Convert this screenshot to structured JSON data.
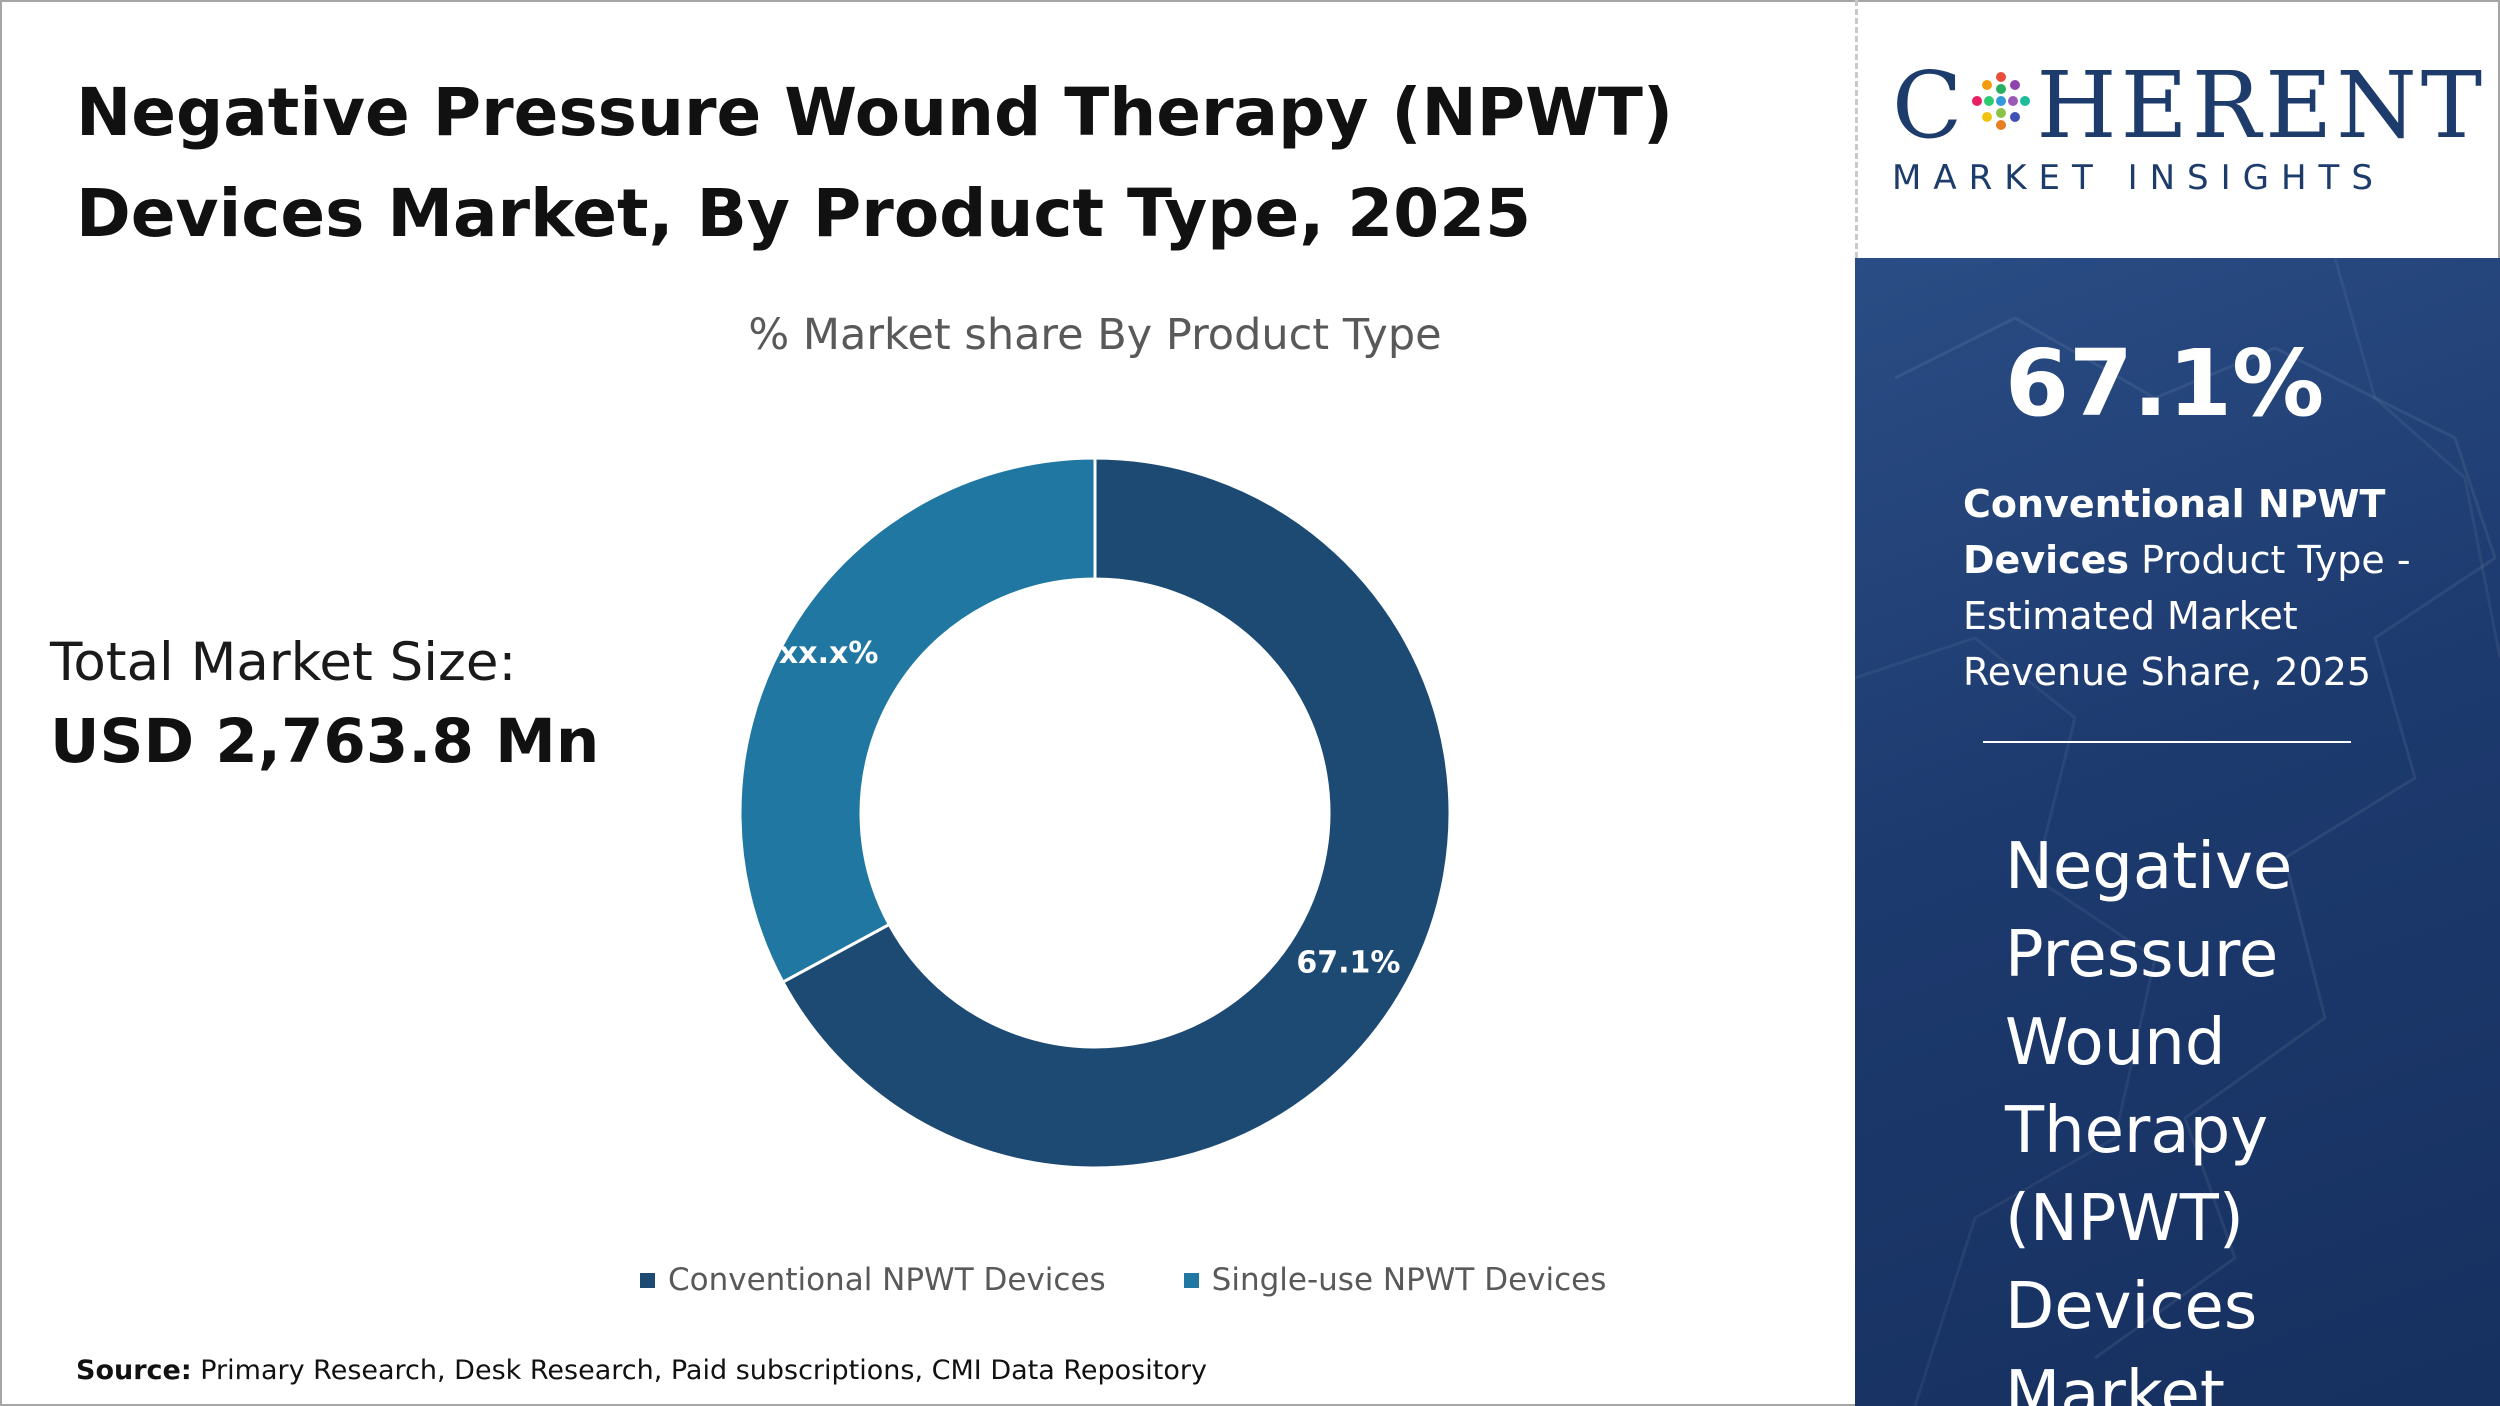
{
  "title_line1": "Negative Pressure Wound Therapy (NPWT)",
  "title_line2": "Devices Market, By Product Type, 2025",
  "total_market_size_label": "Total Market Size:",
  "total_market_size_value": "USD 2,763.8 Mn",
  "source_label": "Source:",
  "source_text": " Primary Research, Desk Research, Paid subscriptions, CMI Data Repository",
  "logo": {
    "word_start": "C",
    "word_end": "HERENT",
    "subtitle": "MARKET INSIGHTS",
    "dots_icon": "colored-dot-grid-o"
  },
  "side_panel": {
    "headline_percent": "67.1%",
    "desc_bold": "Conventional NPWT Devices",
    "desc_rest": " Product Type - Estimated Market Revenue Share, 2025",
    "market_title": "Negative Pressure Wound Therapy (NPWT) Devices Market"
  },
  "colors": {
    "navy": "#1d3c6b",
    "conventional": "#1c4a73",
    "single_use": "#1f77a2",
    "panel_bg": "#1d3a6e"
  },
  "chart_data": {
    "type": "pie",
    "subtitle": "% Market share By Product Type",
    "donut": true,
    "legend_position": "bottom",
    "slices": [
      {
        "label": "Conventional NPWT Devices",
        "value": 67.1,
        "display": "67.1%",
        "color": "#1c4a73"
      },
      {
        "label": "Single-use NPWT Devices",
        "value": 32.9,
        "display": "xx.x%",
        "color": "#1f77a2"
      }
    ]
  }
}
